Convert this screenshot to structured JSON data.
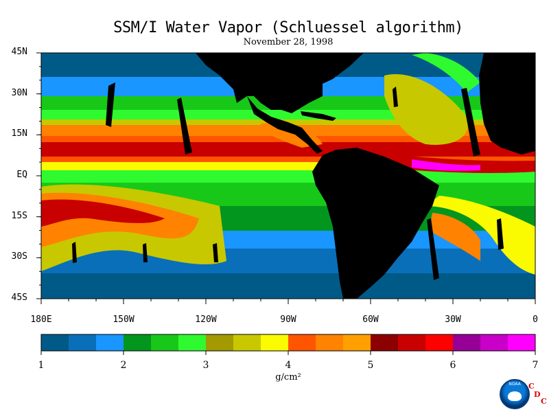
{
  "title": "SSM/I Water Vapor (Schluessel algorithm)",
  "subtitle": "November 28, 1998",
  "lat_labels": [
    "45N",
    "30N",
    "15N",
    "EQ",
    "15S",
    "30S",
    "45S"
  ],
  "lon_labels": [
    "180E",
    "150W",
    "120W",
    "90W",
    "60W",
    "30W",
    "0"
  ],
  "colorbar": {
    "colors": [
      "#005a87",
      "#0a6fb9",
      "#1996ff",
      "#03961e",
      "#18c818",
      "#2ffa2f",
      "#a29a00",
      "#c8c800",
      "#fafa00",
      "#ff5500",
      "#ff8200",
      "#ffa000",
      "#8c0000",
      "#c80000",
      "#ff0000",
      "#960096",
      "#c800c8",
      "#ff00ff"
    ],
    "tick_labels": [
      "1",
      "2",
      "3",
      "4",
      "5",
      "6",
      "7"
    ],
    "units": "g/cm²",
    "range": [
      1,
      7
    ]
  },
  "logo": {
    "text": "NOAA",
    "org_letters": [
      "C",
      "D",
      "C"
    ]
  },
  "colors": {
    "land": "#000000",
    "background": "#ffffff"
  }
}
